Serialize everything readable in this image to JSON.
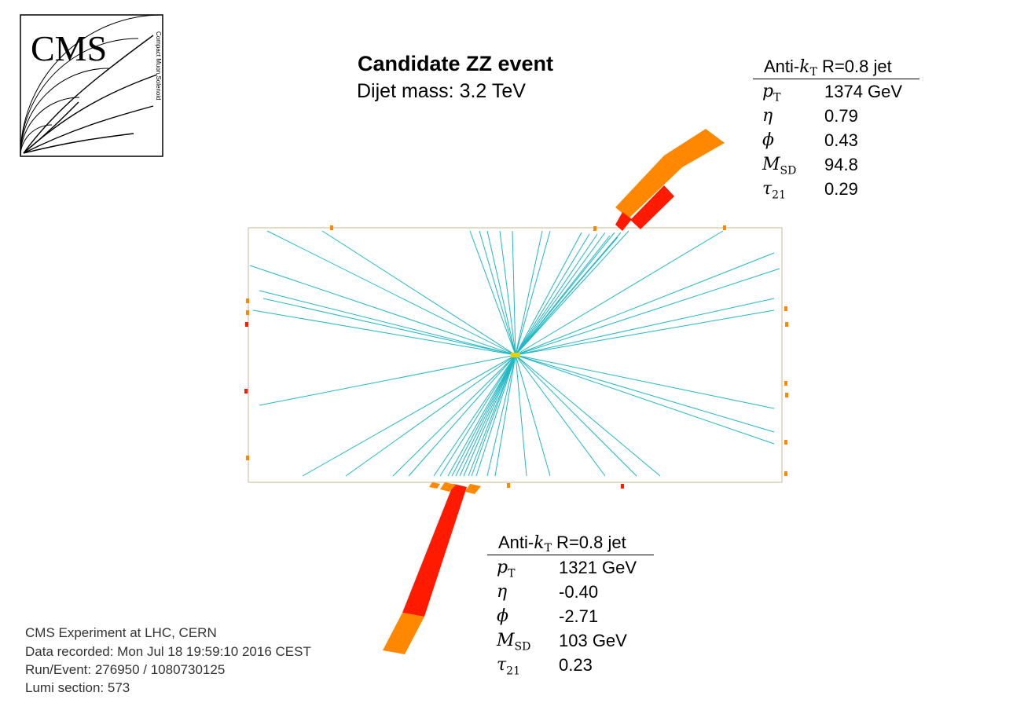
{
  "logo": {
    "text": "CMS",
    "caption": "Compact Muon Solenoid"
  },
  "header": {
    "title": "Candidate ZZ event",
    "subtitle": "Dijet mass: 3.2 TeV"
  },
  "jets": [
    {
      "header_prefix": "Anti-",
      "header_k": "k",
      "header_T": "T",
      "header_suffix": " R=0.8 jet",
      "rows": [
        {
          "sym": "p",
          "sub": "T",
          "value": "1374 GeV"
        },
        {
          "sym": "η",
          "sub": "",
          "value": "0.79"
        },
        {
          "sym": "ϕ",
          "sub": "",
          "value": "0.43"
        },
        {
          "sym": "M",
          "sub": "SD",
          "value": "94.8"
        },
        {
          "sym": "τ",
          "sub": "21",
          "value": "0.29"
        }
      ]
    },
    {
      "header_prefix": "Anti-",
      "header_k": "k",
      "header_T": "T",
      "header_suffix": " R=0.8 jet",
      "rows": [
        {
          "sym": "p",
          "sub": "T",
          "value": "1321 GeV"
        },
        {
          "sym": "η",
          "sub": "",
          "value": "-0.40"
        },
        {
          "sym": "ϕ",
          "sub": "",
          "value": "-2.71"
        },
        {
          "sym": "M",
          "sub": "SD",
          "value": "103 GeV"
        },
        {
          "sym": "τ",
          "sub": "21",
          "value": "0.23"
        }
      ]
    }
  ],
  "info": {
    "line1": "CMS Experiment at LHC, CERN",
    "line2": "Data recorded: Mon Jul 18 19:59:10 2016 CEST",
    "line3": "Run/Event: 276950 / 1080730125",
    "line4": "Lumi section: 573"
  },
  "colors": {
    "track": "#20b8c4",
    "hcal": "#ff8800",
    "ecal": "#ff1a00",
    "detector_outline": "#c8b890",
    "vertex": "#e8d000"
  }
}
